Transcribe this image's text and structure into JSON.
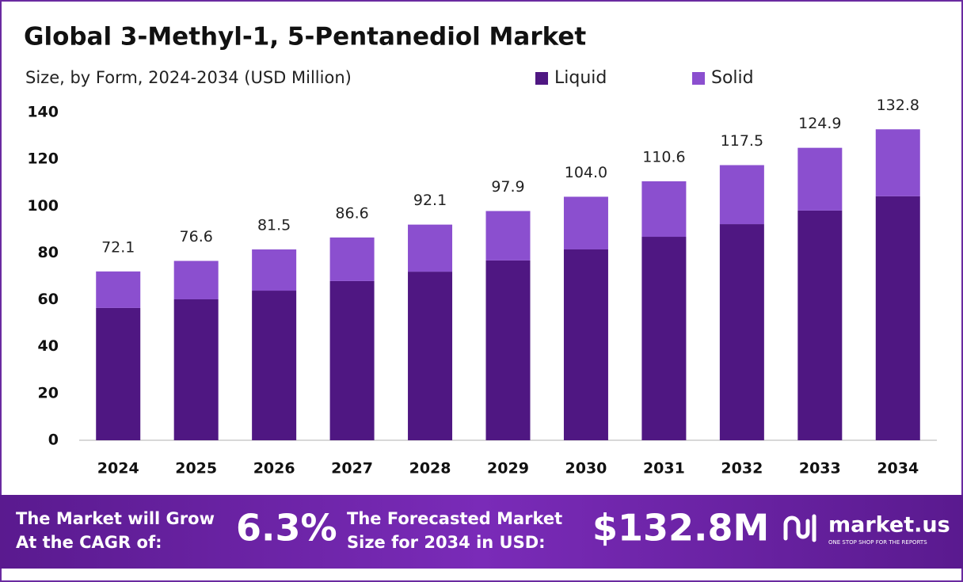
{
  "chart_data": {
    "type": "stacked_bar",
    "title": "Global 3-Methyl-1, 5-Pentanediol Market",
    "subtitle": "Size, by Form, 2024-2034 (USD Million)",
    "categories": [
      "2024",
      "2025",
      "2026",
      "2027",
      "2028",
      "2029",
      "2030",
      "2031",
      "2032",
      "2033",
      "2034"
    ],
    "series": [
      {
        "name": "Liquid",
        "color": "#4f1782",
        "values": [
          56.5,
          60.2,
          63.9,
          68.0,
          72.0,
          76.8,
          81.5,
          86.9,
          92.3,
          98.1,
          104.2
        ]
      },
      {
        "name": "Solid",
        "color": "#8b4fcf",
        "values": [
          15.6,
          16.4,
          17.6,
          18.6,
          20.1,
          21.1,
          22.5,
          23.7,
          25.2,
          26.8,
          28.6
        ]
      }
    ],
    "totals": {
      "values": [
        72.1,
        76.6,
        81.5,
        86.6,
        92.1,
        97.9,
        104.0,
        110.6,
        117.5,
        124.9,
        132.8
      ],
      "value_labels": [
        "72.1",
        "76.6",
        "81.5",
        "86.6",
        "92.1",
        "97.9",
        "104.0",
        "110.6",
        "117.5",
        "124.9",
        "132.8"
      ]
    },
    "ylim": [
      0,
      140
    ],
    "yticks": [
      0,
      20,
      40,
      60,
      80,
      100,
      120,
      140
    ],
    "grid": false,
    "legend": "top"
  },
  "footer": {
    "cagr_text": [
      "The Market will Grow",
      "At the CAGR of:"
    ],
    "cagr": "6.3%",
    "forecast_text": [
      "The Forecasted Market",
      "Size for 2034 in USD:"
    ],
    "forecast": "$132.8M",
    "brand": "market.us",
    "tagline": "ONE STOP SHOP FOR THE REPORTS"
  }
}
